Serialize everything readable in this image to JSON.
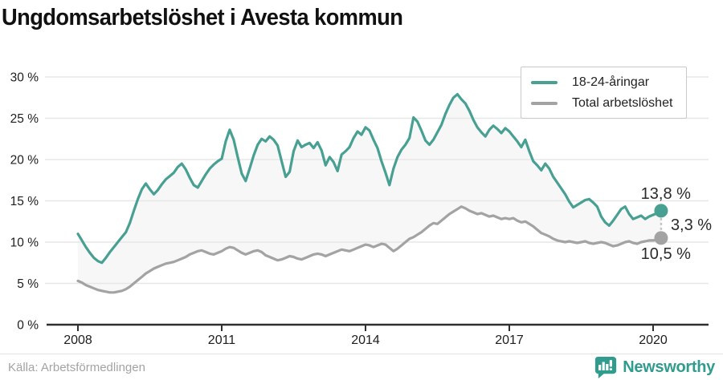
{
  "title": "Ungdomsarbetslöshet i Avesta kommun",
  "legend": {
    "items": [
      {
        "label": "18-24-åringar",
        "color": "#47a092"
      },
      {
        "label": "Total arbetslöshet",
        "color": "#a3a3a3"
      }
    ]
  },
  "footer": {
    "source": "Källa: Arbetsförmedlingen",
    "brand": "Newsworthy"
  },
  "colors": {
    "youth_line": "#47a092",
    "total_line": "#a3a3a3",
    "band_fill": "#f7f7f7",
    "grid": "#e7e7e7",
    "axis": "#2f2f2f",
    "tick_text": "#1d1d1d",
    "annotation_text": "#2b2b2b",
    "connector": "#c4c4c4",
    "brand_teal": "#2f9c8d",
    "source_text": "#a3a3a3"
  },
  "chart_data": {
    "type": "line",
    "title": "Ungdomsarbetslöshet i Avesta kommun",
    "x_interval": "monthly",
    "x_start": "2008-01",
    "x_end": "2020-03",
    "x_tick_years": [
      2008,
      2011,
      2014,
      2017,
      2020
    ],
    "x_tick_labels": [
      "2008",
      "2011",
      "2014",
      "2017",
      "2020"
    ],
    "y_ticks": [
      0,
      5,
      10,
      15,
      20,
      25,
      30
    ],
    "y_tick_labels": [
      "0 %",
      "5 %",
      "10 %",
      "15 %",
      "20 %",
      "25 %",
      "30 %"
    ],
    "ylim": [
      0,
      30
    ],
    "grid": true,
    "legend_position": "top-right",
    "band_between_series": true,
    "series": [
      {
        "name": "18-24-åringar",
        "color": "#47a092",
        "values": [
          11.0,
          10.2,
          9.4,
          8.7,
          8.1,
          7.7,
          7.5,
          8.1,
          8.8,
          9.4,
          10.0,
          10.6,
          11.2,
          12.3,
          13.8,
          15.2,
          16.4,
          17.1,
          16.4,
          15.8,
          16.3,
          17.0,
          17.6,
          18.0,
          18.4,
          19.1,
          19.5,
          18.8,
          17.8,
          16.9,
          16.6,
          17.4,
          18.2,
          18.9,
          19.4,
          19.8,
          20.1,
          22.2,
          23.6,
          22.4,
          20.3,
          18.3,
          17.4,
          18.9,
          20.5,
          21.8,
          22.5,
          22.2,
          22.8,
          22.4,
          21.7,
          19.8,
          17.9,
          18.5,
          21.0,
          22.3,
          21.5,
          21.8,
          22.0,
          21.4,
          22.1,
          21.1,
          19.3,
          20.3,
          19.7,
          18.6,
          20.6,
          21.0,
          21.5,
          22.6,
          23.4,
          23.0,
          23.9,
          23.5,
          22.4,
          21.4,
          19.8,
          18.4,
          16.9,
          18.9,
          20.3,
          21.2,
          21.8,
          22.6,
          25.1,
          24.6,
          23.5,
          22.3,
          21.8,
          22.4,
          23.3,
          24.2,
          25.5,
          26.6,
          27.5,
          27.9,
          27.3,
          26.8,
          25.9,
          24.8,
          23.9,
          23.3,
          22.8,
          23.6,
          24.1,
          23.7,
          23.2,
          23.8,
          23.4,
          22.8,
          22.2,
          21.5,
          22.4,
          21.0,
          19.8,
          19.3,
          18.7,
          19.5,
          18.9,
          17.9,
          17.2,
          16.5,
          15.8,
          14.9,
          14.2,
          14.5,
          14.8,
          15.1,
          15.2,
          14.8,
          14.3,
          13.1,
          12.4,
          12.0,
          12.6,
          13.3,
          14.0,
          14.3,
          13.4,
          12.8,
          13.0,
          13.2,
          12.8,
          13.1,
          13.3,
          13.5,
          13.8
        ]
      },
      {
        "name": "Total arbetslöshet",
        "color": "#a3a3a3",
        "values": [
          5.3,
          5.1,
          4.8,
          4.6,
          4.4,
          4.2,
          4.1,
          4.0,
          3.9,
          3.9,
          4.0,
          4.1,
          4.3,
          4.6,
          5.0,
          5.4,
          5.8,
          6.2,
          6.5,
          6.8,
          7.0,
          7.2,
          7.4,
          7.5,
          7.6,
          7.8,
          8.0,
          8.2,
          8.5,
          8.7,
          8.9,
          9.0,
          8.8,
          8.6,
          8.5,
          8.7,
          8.9,
          9.2,
          9.4,
          9.3,
          9.0,
          8.7,
          8.5,
          8.7,
          8.9,
          9.0,
          8.8,
          8.4,
          8.2,
          8.0,
          7.8,
          7.9,
          8.1,
          8.3,
          8.2,
          8.0,
          7.9,
          8.1,
          8.3,
          8.5,
          8.6,
          8.5,
          8.3,
          8.5,
          8.7,
          8.9,
          9.1,
          9.0,
          8.9,
          9.1,
          9.3,
          9.5,
          9.7,
          9.6,
          9.4,
          9.6,
          9.8,
          9.7,
          9.3,
          8.9,
          9.2,
          9.6,
          10.0,
          10.4,
          10.6,
          10.9,
          11.2,
          11.6,
          12.0,
          12.3,
          12.2,
          12.6,
          13.0,
          13.4,
          13.7,
          14.0,
          14.3,
          14.1,
          13.8,
          13.6,
          13.4,
          13.5,
          13.3,
          13.1,
          13.2,
          13.0,
          12.8,
          12.9,
          12.8,
          12.9,
          12.6,
          12.4,
          12.5,
          12.2,
          11.9,
          11.5,
          11.1,
          10.9,
          10.7,
          10.4,
          10.2,
          10.1,
          10.0,
          10.1,
          10.0,
          9.9,
          10.0,
          10.1,
          9.9,
          9.8,
          9.9,
          10.0,
          9.9,
          9.7,
          9.5,
          9.6,
          9.8,
          10.0,
          10.1,
          9.9,
          9.8,
          10.0,
          10.1,
          10.2,
          10.2,
          10.3,
          10.5
        ]
      }
    ],
    "end_labels": {
      "youth": "13,8 %",
      "difference": "3,3 %",
      "total": "10,5 %"
    }
  }
}
